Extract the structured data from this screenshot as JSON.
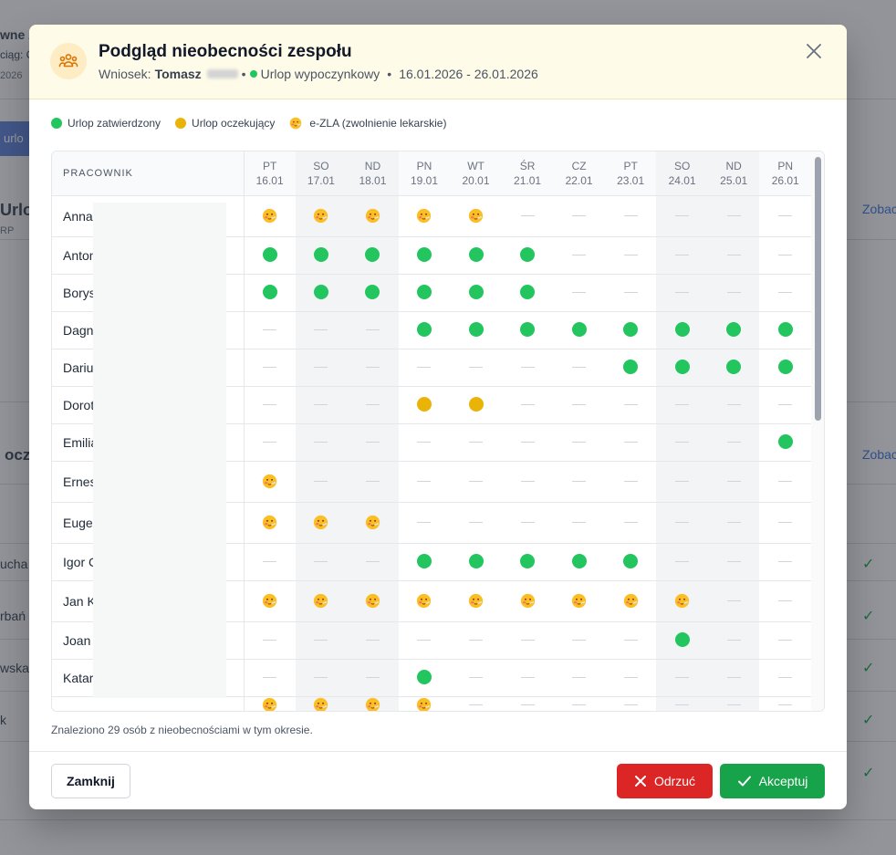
{
  "background": {
    "fragments": [
      "wne z",
      "ciąg: C",
      "2026",
      "urlo",
      "Urlop",
      "RP",
      "ocz",
      "ucha",
      "rbań",
      "wska",
      "k"
    ],
    "links": [
      "Zobac",
      "Zobac"
    ]
  },
  "modal": {
    "title": "Podgląd nieobecności zespołu",
    "request_label": "Wniosek:",
    "requester": "Tomasz",
    "leave_type": "Urlop wypoczynkowy",
    "date_range": "16.01.2026 - 26.01.2026",
    "icon": "users-icon",
    "close_icon": "close-icon"
  },
  "legend": [
    {
      "kind": "approved",
      "label": "Urlop zatwierdzony",
      "color": "#22c55e"
    },
    {
      "kind": "pending",
      "label": "Urlop oczekujący",
      "color": "#eab308"
    },
    {
      "kind": "sick",
      "label": "e-ZLA (zwolnienie lekarskie)",
      "icon": "sick-face-icon"
    }
  ],
  "table": {
    "employee_header": "PRACOWNIK",
    "days": [
      {
        "dow": "PT",
        "date": "16.01",
        "weekend": false
      },
      {
        "dow": "SO",
        "date": "17.01",
        "weekend": true
      },
      {
        "dow": "ND",
        "date": "18.01",
        "weekend": true
      },
      {
        "dow": "PN",
        "date": "19.01",
        "weekend": false
      },
      {
        "dow": "WT",
        "date": "20.01",
        "weekend": false
      },
      {
        "dow": "ŚR",
        "date": "21.01",
        "weekend": false
      },
      {
        "dow": "CZ",
        "date": "22.01",
        "weekend": false
      },
      {
        "dow": "PT",
        "date": "23.01",
        "weekend": false
      },
      {
        "dow": "SO",
        "date": "24.01",
        "weekend": true
      },
      {
        "dow": "ND",
        "date": "25.01",
        "weekend": true
      },
      {
        "dow": "PN",
        "date": "26.01",
        "weekend": false
      }
    ],
    "rows": [
      {
        "name": "Anna",
        "cells": [
          "S",
          "S",
          "S",
          "S",
          "S",
          "-",
          "-",
          "-",
          "-",
          "-",
          "-"
        ]
      },
      {
        "name": "Anton",
        "cells": [
          "A",
          "A",
          "A",
          "A",
          "A",
          "A",
          "-",
          "-",
          "-",
          "-",
          "-"
        ]
      },
      {
        "name": "Borys",
        "cells": [
          "A",
          "A",
          "A",
          "A",
          "A",
          "A",
          "-",
          "-",
          "-",
          "-",
          "-"
        ]
      },
      {
        "name": "Dagn",
        "cells": [
          "-",
          "-",
          "-",
          "A",
          "A",
          "A",
          "A",
          "A",
          "A",
          "A",
          "A"
        ]
      },
      {
        "name": "Dariu",
        "cells": [
          "-",
          "-",
          "-",
          "-",
          "-",
          "-",
          "-",
          "A",
          "A",
          "A",
          "A"
        ]
      },
      {
        "name": "Dorot",
        "cells": [
          "-",
          "-",
          "-",
          "P",
          "P",
          "-",
          "-",
          "-",
          "-",
          "-",
          "-"
        ]
      },
      {
        "name": "Emilia",
        "cells": [
          "-",
          "-",
          "-",
          "-",
          "-",
          "-",
          "-",
          "-",
          "-",
          "-",
          "A"
        ]
      },
      {
        "name": "Ernes",
        "cells": [
          "S",
          "-",
          "-",
          "-",
          "-",
          "-",
          "-",
          "-",
          "-",
          "-",
          "-"
        ]
      },
      {
        "name": "Euge",
        "cells": [
          "S",
          "S",
          "S",
          "-",
          "-",
          "-",
          "-",
          "-",
          "-",
          "-",
          "-"
        ]
      },
      {
        "name": "Igor C",
        "cells": [
          "-",
          "-",
          "-",
          "A",
          "A",
          "A",
          "A",
          "A",
          "-",
          "-",
          "-"
        ]
      },
      {
        "name": "Jan K",
        "cells": [
          "S",
          "S",
          "S",
          "S",
          "S",
          "S",
          "S",
          "S",
          "S",
          "-",
          "-"
        ]
      },
      {
        "name": "Joan",
        "cells": [
          "-",
          "-",
          "-",
          "-",
          "-",
          "-",
          "-",
          "-",
          "A",
          "-",
          "-"
        ]
      },
      {
        "name": "Katar",
        "cells": [
          "-",
          "-",
          "-",
          "A",
          "-",
          "-",
          "-",
          "-",
          "-",
          "-",
          "-"
        ]
      },
      {
        "name": "",
        "cells": [
          "S",
          "S",
          "S",
          "S",
          "-",
          "-",
          "-",
          "-",
          "-",
          "-",
          "-"
        ]
      }
    ]
  },
  "found_text": "Znaleziono 29 osób z nieobecnościami w tym okresie.",
  "footer": {
    "close_label": "Zamknij",
    "reject_label": "Odrzuć",
    "accept_label": "Akceptuj"
  }
}
